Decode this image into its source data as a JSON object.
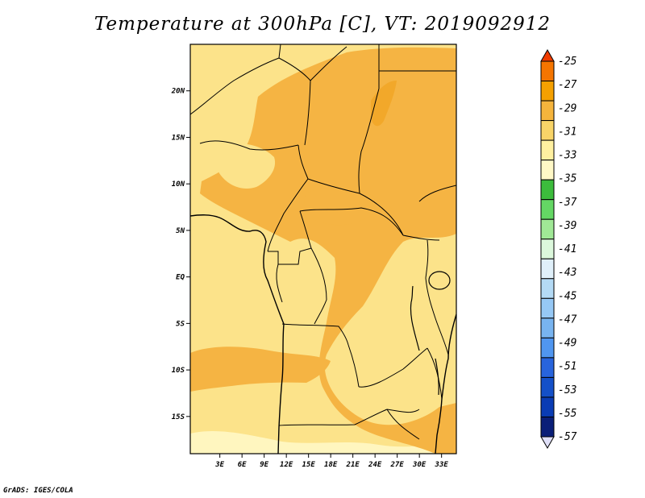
{
  "title": "Temperature at 300hPa [C], VT: 2019092912",
  "footer": "GrADS: IGES/COLA",
  "map": {
    "lon_range": [
      -1,
      35
    ],
    "lat_range": [
      -19,
      25
    ],
    "lat_ticks": [
      {
        "value": 20,
        "label": "20N"
      },
      {
        "value": 15,
        "label": "15N"
      },
      {
        "value": 10,
        "label": "10N"
      },
      {
        "value": 5,
        "label": "5N"
      },
      {
        "value": 0,
        "label": "EQ"
      },
      {
        "value": -5,
        "label": "5S"
      },
      {
        "value": -10,
        "label": "10S"
      },
      {
        "value": -15,
        "label": "15S"
      }
    ],
    "lon_ticks": [
      {
        "value": 3,
        "label": "3E"
      },
      {
        "value": 6,
        "label": "6E"
      },
      {
        "value": 9,
        "label": "9E"
      },
      {
        "value": 12,
        "label": "12E"
      },
      {
        "value": 15,
        "label": "15E"
      },
      {
        "value": 18,
        "label": "18E"
      },
      {
        "value": 21,
        "label": "21E"
      },
      {
        "value": 24,
        "label": "24E"
      },
      {
        "value": 27,
        "label": "27E"
      },
      {
        "value": 30,
        "label": "30E"
      },
      {
        "value": 33,
        "label": "33E"
      }
    ]
  },
  "legend": {
    "levels": [
      "-25",
      "-27",
      "-29",
      "-31",
      "-33",
      "-35",
      "-37",
      "-39",
      "-41",
      "-43",
      "-45",
      "-47",
      "-49",
      "-51",
      "-53",
      "-55",
      "-57"
    ],
    "colors": [
      "#f03c00",
      "#f57500",
      "#f5a000",
      "#f5b43c",
      "#f8d468",
      "#fff0a0",
      "#fff8c6",
      "#3cbc3c",
      "#64d764",
      "#a0e896",
      "#dcf8dc",
      "#e0f0fa",
      "#b4daf5",
      "#96c8f5",
      "#78b4f0",
      "#5096f0",
      "#2864dc",
      "#1450c8",
      "#0a3cb4",
      "#0a1e78",
      "#e0e0f8"
    ]
  }
}
